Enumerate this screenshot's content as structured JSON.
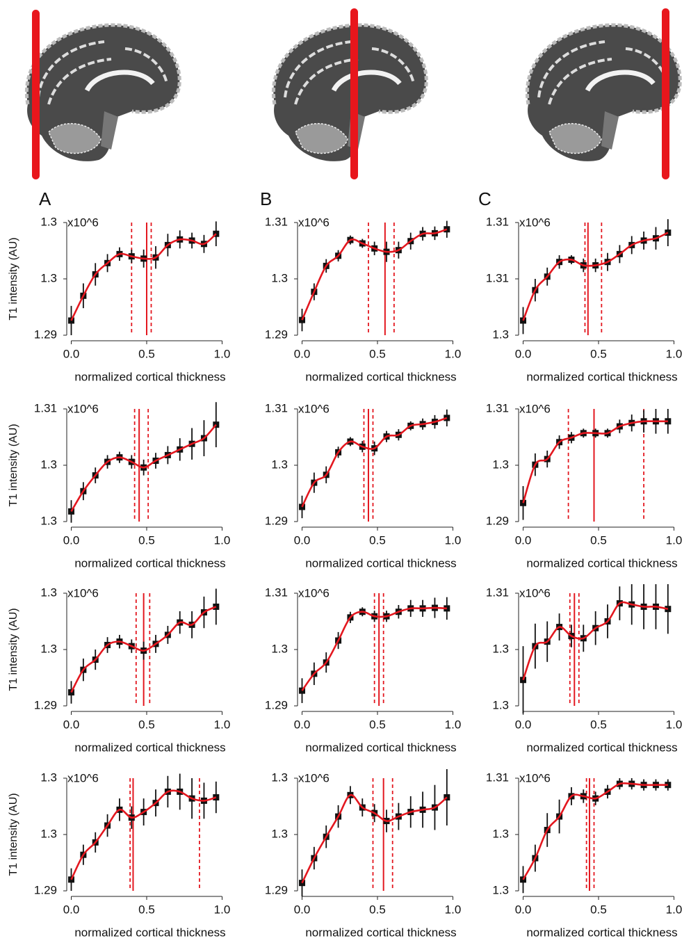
{
  "panels": [
    "A",
    "B",
    "C"
  ],
  "chart_data": [
    {
      "type": "errorbar",
      "y_label": "T1 intensity (AU)",
      "y_multiplier": "x10^6",
      "x_label": "normalized cortical thickness",
      "color": "#e3171f",
      "x": [
        0,
        0.08,
        0.16,
        0.24,
        0.32,
        0.4,
        0.48,
        0.56,
        0.64,
        0.72,
        0.8,
        0.88,
        0.96
      ],
      "values": [
        1.2913,
        1.2935,
        1.2954,
        1.2964,
        1.2972,
        1.297,
        1.2968,
        1.2969,
        1.298,
        1.2985,
        1.2984,
        1.2981,
        1.299
      ],
      "errors": [
        0.0013,
        0.0011,
        0.001,
        0.0008,
        0.0006,
        0.0006,
        0.0008,
        0.001,
        0.001,
        0.0008,
        0.0007,
        0.0008,
        0.0011
      ],
      "peak": 0.5,
      "bounds": [
        0.4,
        0.53
      ],
      "xlim": [
        -0.03,
        1.03
      ],
      "ylim": [
        1.29,
        1.3
      ],
      "xticks": [
        {
          "value": 0,
          "label": "0.0"
        },
        0.5,
        {
          "value": 1,
          "label": "1.0"
        }
      ],
      "yticks": [
        1.29,
        {
          "value": 1.295,
          "label": "1.3"
        },
        1.3
      ]
    },
    {
      "type": "errorbar",
      "y_multiplier": "x10^6",
      "x_label": "normalized cortical thickness",
      "color": "#e3171f",
      "x": [
        0,
        0.08,
        0.16,
        0.24,
        0.32,
        0.4,
        0.48,
        0.56,
        0.64,
        0.72,
        0.8,
        0.88,
        0.96
      ],
      "values": [
        1.2927,
        1.2977,
        1.3023,
        1.3041,
        1.3069,
        1.3063,
        1.3054,
        1.3048,
        1.3051,
        1.3067,
        1.308,
        1.3081,
        1.3088
      ],
      "errors": [
        0.002,
        0.0015,
        0.0012,
        0.001,
        0.0008,
        0.0008,
        0.0012,
        0.0018,
        0.0015,
        0.0015,
        0.0012,
        0.0012,
        0.0015
      ],
      "peak": 0.55,
      "bounds": [
        0.44,
        0.61
      ],
      "xlim": [
        -0.03,
        1.03
      ],
      "ylim": [
        1.29,
        1.31
      ],
      "xticks": [
        {
          "value": 0,
          "label": "0.0"
        },
        0.5,
        {
          "value": 1,
          "label": "1.0"
        }
      ],
      "yticks": [
        1.29,
        1.3,
        1.31
      ]
    },
    {
      "type": "errorbar",
      "y_multiplier": "x10^6",
      "x_label": "normalized cortical thickness",
      "color": "#e3171f",
      "x": [
        0,
        0.08,
        0.16,
        0.24,
        0.32,
        0.4,
        0.48,
        0.56,
        0.64,
        0.72,
        0.8,
        0.88,
        0.96
      ],
      "values": [
        1.3013,
        1.304,
        1.3052,
        1.3065,
        1.3067,
        1.3062,
        1.3062,
        1.3065,
        1.3072,
        1.308,
        1.3084,
        1.3086,
        1.3091
      ],
      "errors": [
        0.0012,
        0.001,
        0.0008,
        0.0006,
        0.0004,
        0.0006,
        0.0006,
        0.0008,
        0.0008,
        0.0008,
        0.0008,
        0.001,
        0.0012
      ],
      "peak": 0.43,
      "bounds": [
        0.41,
        0.52
      ],
      "xlim": [
        -0.03,
        1.03
      ],
      "ylim": [
        1.3,
        1.31
      ],
      "xticks": [
        {
          "value": 0,
          "label": "0.0"
        },
        0.5,
        {
          "value": 1,
          "label": "1.0"
        }
      ],
      "yticks": [
        1.3,
        {
          "value": 1.305,
          "label": "1.31"
        },
        1.31
      ]
    },
    {
      "type": "errorbar",
      "y_label": "T1 intensity (AU)",
      "y_multiplier": "x10^6",
      "x_label": "normalized cortical thickness",
      "color": "#e3171f",
      "x": [
        0,
        0.08,
        0.16,
        0.24,
        0.32,
        0.4,
        0.48,
        0.56,
        0.64,
        0.72,
        0.8,
        0.88,
        0.96
      ],
      "values": [
        1.2959,
        1.2977,
        1.2991,
        1.3003,
        1.3007,
        1.3003,
        1.2998,
        1.3004,
        1.3009,
        1.3014,
        1.3019,
        1.3024,
        1.3036
      ],
      "errors": [
        0.001,
        0.0008,
        0.0007,
        0.0006,
        0.0005,
        0.0006,
        0.0007,
        0.0007,
        0.0008,
        0.001,
        0.0014,
        0.0016,
        0.002
      ],
      "peak": 0.45,
      "bounds": [
        0.42,
        0.51
      ],
      "xlim": [
        -0.03,
        1.03
      ],
      "ylim": [
        1.295,
        1.305
      ],
      "xticks": [
        {
          "value": 0,
          "label": "0.0"
        },
        0.5,
        {
          "value": 1,
          "label": "1.0"
        }
      ],
      "yticks": [
        {
          "value": 1.295,
          "label": "1.3"
        },
        1.3,
        {
          "value": 1.305,
          "label": "1.31"
        }
      ]
    },
    {
      "type": "errorbar",
      "y_multiplier": "x10^6",
      "x_label": "normalized cortical thickness",
      "color": "#e3171f",
      "x": [
        0,
        0.08,
        0.16,
        0.24,
        0.32,
        0.4,
        0.48,
        0.56,
        0.64,
        0.72,
        0.8,
        0.88,
        0.96
      ],
      "values": [
        1.2926,
        1.2969,
        1.2983,
        1.3023,
        1.3042,
        1.3033,
        1.303,
        1.3051,
        1.3054,
        1.307,
        1.3073,
        1.3077,
        1.3084
      ],
      "errors": [
        0.002,
        0.0018,
        0.0015,
        0.001,
        0.0008,
        0.001,
        0.0012,
        0.001,
        0.001,
        0.0008,
        0.001,
        0.0012,
        0.0015
      ],
      "peak": 0.44,
      "bounds": [
        0.41,
        0.47
      ],
      "xlim": [
        -0.03,
        1.03
      ],
      "ylim": [
        1.29,
        1.31
      ],
      "xticks": [
        {
          "value": 0,
          "label": "0.0"
        },
        0.5,
        {
          "value": 1,
          "label": "1.0"
        }
      ],
      "yticks": [
        1.29,
        1.3,
        1.31
      ]
    },
    {
      "type": "errorbar",
      "y_multiplier": "x10^6",
      "x_label": "normalized cortical thickness",
      "color": "#e3171f",
      "x": [
        0,
        0.08,
        0.16,
        0.24,
        0.32,
        0.4,
        0.48,
        0.56,
        0.64,
        0.72,
        0.8,
        0.88,
        0.96
      ],
      "values": [
        1.2933,
        1.3001,
        1.3011,
        1.3041,
        1.3049,
        1.3057,
        1.3057,
        1.3057,
        1.3069,
        1.3075,
        1.3078,
        1.3078,
        1.3078
      ],
      "errors": [
        0.003,
        0.002,
        0.0015,
        0.0012,
        0.001,
        0.0008,
        0.0008,
        0.0008,
        0.0012,
        0.0015,
        0.002,
        0.0022,
        0.0022
      ],
      "peak": 0.47,
      "bounds": [
        0.3,
        0.8
      ],
      "xlim": [
        -0.03,
        1.03
      ],
      "ylim": [
        1.29,
        1.31
      ],
      "xticks": [
        {
          "value": 0,
          "label": "0.0"
        },
        0.5,
        {
          "value": 1,
          "label": "1.0"
        }
      ],
      "yticks": [
        1.29,
        1.3,
        1.31
      ]
    },
    {
      "type": "errorbar",
      "y_label": "T1 intensity (AU)",
      "y_multiplier": "x10^6",
      "x_label": "normalized cortical thickness",
      "color": "#e3171f",
      "x": [
        0,
        0.08,
        0.16,
        0.24,
        0.32,
        0.4,
        0.48,
        0.56,
        0.64,
        0.72,
        0.8,
        0.88,
        0.96
      ],
      "values": [
        1.2912,
        1.2932,
        1.2941,
        1.2954,
        1.2957,
        1.2953,
        1.2949,
        1.2955,
        1.2963,
        1.2974,
        1.2972,
        1.2983,
        1.2988
      ],
      "errors": [
        0.001,
        0.001,
        0.0009,
        0.0007,
        0.0006,
        0.0006,
        0.0008,
        0.0008,
        0.0008,
        0.001,
        0.0012,
        0.0014,
        0.0016
      ],
      "peak": 0.48,
      "bounds": [
        0.43,
        0.52
      ],
      "xlim": [
        -0.03,
        1.03
      ],
      "ylim": [
        1.29,
        1.3
      ],
      "xticks": [
        {
          "value": 0,
          "label": "0.0"
        },
        0.5,
        {
          "value": 1,
          "label": "1.0"
        }
      ],
      "yticks": [
        1.29,
        {
          "value": 1.295,
          "label": "1.3"
        },
        1.3
      ]
    },
    {
      "type": "errorbar",
      "y_multiplier": "x10^6",
      "x_label": "normalized cortical thickness",
      "color": "#e3171f",
      "x": [
        0,
        0.08,
        0.16,
        0.24,
        0.32,
        0.4,
        0.48,
        0.56,
        0.64,
        0.72,
        0.8,
        0.88,
        0.96
      ],
      "values": [
        1.2927,
        1.2957,
        1.2977,
        1.3016,
        1.3057,
        1.3067,
        1.3059,
        1.3059,
        1.3067,
        1.3073,
        1.3073,
        1.3074,
        1.3073
      ],
      "errors": [
        0.0022,
        0.002,
        0.0018,
        0.0015,
        0.001,
        0.0008,
        0.001,
        0.001,
        0.0012,
        0.0015,
        0.0015,
        0.0018,
        0.002
      ],
      "peak": 0.51,
      "bounds": [
        0.48,
        0.54
      ],
      "xlim": [
        -0.03,
        1.03
      ],
      "ylim": [
        1.29,
        1.31
      ],
      "xticks": [
        {
          "value": 0,
          "label": "0.0"
        },
        0.5,
        {
          "value": 1,
          "label": "1.0"
        }
      ],
      "yticks": [
        1.29,
        1.3,
        1.31
      ]
    },
    {
      "type": "errorbar",
      "y_multiplier": "x10^6",
      "x_label": "normalized cortical thickness",
      "color": "#e3171f",
      "x": [
        0,
        0.08,
        0.16,
        0.24,
        0.32,
        0.4,
        0.48,
        0.56,
        0.64,
        0.72,
        0.8,
        0.88,
        0.96
      ],
      "values": [
        1.2973,
        1.3003,
        1.3007,
        1.302,
        1.3012,
        1.301,
        1.3019,
        1.3025,
        1.3041,
        1.304,
        1.3038,
        1.3038,
        1.3036
      ],
      "errors": [
        0.003,
        0.002,
        0.0018,
        0.0012,
        0.001,
        0.0012,
        0.0015,
        0.0015,
        0.0015,
        0.0018,
        0.002,
        0.002,
        0.0022
      ],
      "peak": 0.34,
      "bounds": [
        0.31,
        0.37
      ],
      "xlim": [
        -0.03,
        1.03
      ],
      "ylim": [
        1.295,
        1.305
      ],
      "xticks": [
        {
          "value": 0,
          "label": "0.0"
        },
        0.5,
        {
          "value": 1,
          "label": "1.0"
        }
      ],
      "yticks": [
        {
          "value": 1.295,
          "label": "1.3"
        },
        1.3,
        {
          "value": 1.305,
          "label": "1.31"
        }
      ]
    },
    {
      "type": "errorbar",
      "y_label": "T1 intensity (AU)",
      "y_multiplier": "x10^6",
      "x_label": "normalized cortical thickness",
      "color": "#e3171f",
      "x": [
        0,
        0.08,
        0.16,
        0.24,
        0.32,
        0.4,
        0.48,
        0.56,
        0.64,
        0.72,
        0.8,
        0.88,
        0.96
      ],
      "values": [
        1.291,
        1.2932,
        1.2943,
        1.2958,
        1.2972,
        1.2965,
        1.297,
        1.2978,
        1.2988,
        1.2988,
        1.2982,
        1.298,
        1.2983
      ],
      "errors": [
        0.001,
        0.0009,
        0.0009,
        0.001,
        0.001,
        0.001,
        0.0012,
        0.0012,
        0.0014,
        0.0016,
        0.0018,
        0.0016,
        0.0014
      ],
      "peak": 0.41,
      "bounds": [
        0.39,
        0.85
      ],
      "xlim": [
        -0.03,
        1.03
      ],
      "ylim": [
        1.29,
        1.3
      ],
      "xticks": [
        {
          "value": 0,
          "label": "0.0"
        },
        0.5,
        {
          "value": 1,
          "label": "1.0"
        }
      ],
      "yticks": [
        1.29,
        {
          "value": 1.295,
          "label": "1.3"
        },
        1.3
      ]
    },
    {
      "type": "errorbar",
      "y_multiplier": "x10^6",
      "x_label": "normalized cortical thickness",
      "color": "#e3171f",
      "x": [
        0,
        0.08,
        0.16,
        0.24,
        0.32,
        0.4,
        0.48,
        0.56,
        0.64,
        0.72,
        0.8,
        0.88,
        0.96
      ],
      "values": [
        1.2907,
        1.2929,
        1.2948,
        1.2966,
        1.2985,
        1.2974,
        1.2969,
        1.2962,
        1.2966,
        1.297,
        1.2972,
        1.2974,
        1.2983
      ],
      "errors": [
        0.0012,
        0.001,
        0.001,
        0.001,
        0.0008,
        0.0008,
        0.0008,
        0.001,
        0.0012,
        0.0014,
        0.0016,
        0.002,
        0.0025
      ],
      "peak": 0.54,
      "bounds": [
        0.47,
        0.6
      ],
      "xlim": [
        -0.03,
        1.03
      ],
      "ylim": [
        1.29,
        1.3
      ],
      "xticks": [
        {
          "value": 0,
          "label": "0.0"
        },
        0.5,
        {
          "value": 1,
          "label": "1.0"
        }
      ],
      "yticks": [
        1.29,
        {
          "value": 1.295,
          "label": "1.3"
        },
        1.3
      ]
    },
    {
      "type": "errorbar",
      "y_multiplier": "x10^6",
      "x_label": "normalized cortical thickness",
      "color": "#e3171f",
      "x": [
        0,
        0.08,
        0.16,
        0.24,
        0.32,
        0.4,
        0.48,
        0.56,
        0.64,
        0.72,
        0.8,
        0.88,
        0.96
      ],
      "values": [
        1.296,
        1.2979,
        1.3004,
        1.3016,
        1.3034,
        1.3034,
        1.3032,
        1.3038,
        1.3045,
        1.3045,
        1.3044,
        1.3044,
        1.3044
      ],
      "errors": [
        0.0012,
        0.0012,
        0.0015,
        0.0015,
        0.0008,
        0.0006,
        0.0006,
        0.0006,
        0.0005,
        0.0005,
        0.0005,
        0.0005,
        0.0005
      ],
      "peak": 0.44,
      "bounds": [
        0.42,
        0.47
      ],
      "xlim": [
        -0.03,
        1.03
      ],
      "ylim": [
        1.295,
        1.305
      ],
      "xticks": [
        {
          "value": 0,
          "label": "0.0"
        },
        0.5,
        {
          "value": 1,
          "label": "1.0"
        }
      ],
      "yticks": [
        {
          "value": 1.295,
          "label": "1.3"
        },
        1.3,
        {
          "value": 1.305,
          "label": "1.31"
        }
      ]
    }
  ]
}
